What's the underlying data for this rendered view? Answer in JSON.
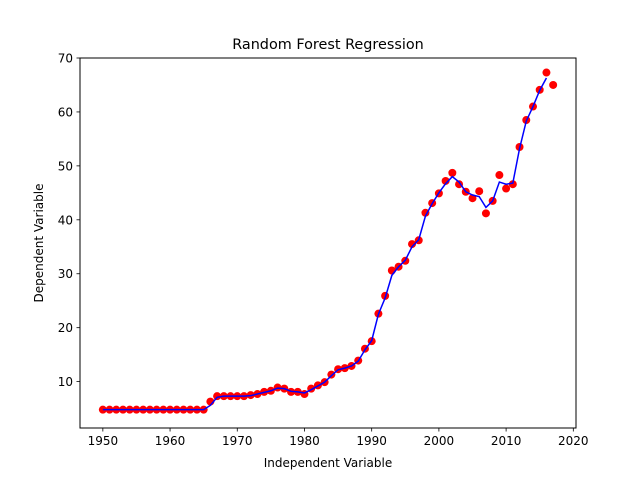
{
  "chart_data": {
    "type": "scatter",
    "title": "Random Forest Regression",
    "xlabel": "Independent Variable",
    "ylabel": "Dependent Variable",
    "xlim": [
      1946.6,
      2020.4
    ],
    "ylim": [
      1.4,
      70.0
    ],
    "xticks": [
      1950,
      1960,
      1970,
      1980,
      1990,
      2000,
      2010,
      2020
    ],
    "yticks": [
      10,
      20,
      30,
      40,
      50,
      60,
      70
    ],
    "grid": false,
    "legend": "none",
    "series": [
      {
        "kind": "scatter",
        "color": "#ff0000",
        "x": [
          1950,
          1951,
          1952,
          1953,
          1954,
          1955,
          1956,
          1957,
          1958,
          1959,
          1960,
          1961,
          1962,
          1963,
          1964,
          1965,
          1966,
          1967,
          1968,
          1969,
          1970,
          1971,
          1972,
          1973,
          1974,
          1975,
          1976,
          1977,
          1978,
          1979,
          1980,
          1981,
          1982,
          1983,
          1984,
          1985,
          1986,
          1987,
          1988,
          1989,
          1990,
          1991,
          1992,
          1993,
          1994,
          1995,
          1996,
          1997,
          1998,
          1999,
          2000,
          2001,
          2002,
          2003,
          2004,
          2005,
          2006,
          2007,
          2008,
          2009,
          2010,
          2011,
          2012,
          2013,
          2014,
          2015,
          2016,
          2017
        ],
        "y": [
          4.8,
          4.8,
          4.8,
          4.8,
          4.8,
          4.8,
          4.8,
          4.8,
          4.8,
          4.8,
          4.8,
          4.8,
          4.8,
          4.8,
          4.8,
          4.8,
          6.3,
          7.3,
          7.3,
          7.3,
          7.3,
          7.3,
          7.5,
          7.7,
          8.1,
          8.3,
          8.9,
          8.7,
          8.1,
          8.1,
          7.7,
          8.7,
          9.3,
          9.9,
          11.3,
          12.3,
          12.5,
          12.9,
          13.9,
          16.1,
          17.5,
          22.6,
          25.9,
          30.6,
          31.3,
          32.4,
          35.5,
          36.2,
          41.3,
          43.1,
          44.9,
          47.2,
          48.7,
          46.6,
          45.2,
          44.0,
          45.3,
          41.2,
          43.5,
          48.3,
          45.8,
          46.6,
          53.5,
          58.5,
          61.0,
          64.1,
          67.3,
          65.0
        ]
      },
      {
        "kind": "line",
        "color": "#0000ff",
        "x": [
          1950,
          1951,
          1952,
          1953,
          1954,
          1955,
          1956,
          1957,
          1958,
          1959,
          1960,
          1961,
          1962,
          1963,
          1964,
          1965,
          1966,
          1967,
          1968,
          1969,
          1970,
          1971,
          1972,
          1973,
          1974,
          1975,
          1976,
          1977,
          1978,
          1979,
          1980,
          1981,
          1982,
          1983,
          1984,
          1985,
          1986,
          1987,
          1988,
          1989,
          1990,
          1991,
          1992,
          1993,
          1994,
          1995,
          1996,
          1997,
          1998,
          1999,
          2000,
          2001,
          2002,
          2003,
          2004,
          2005,
          2006,
          2007,
          2008,
          2009,
          2010,
          2011,
          2012,
          2013,
          2014,
          2015,
          2016
        ],
        "y": [
          4.8,
          4.8,
          4.8,
          4.8,
          4.8,
          4.8,
          4.8,
          4.8,
          4.8,
          4.8,
          4.8,
          4.8,
          4.8,
          4.8,
          4.8,
          4.8,
          5.6,
          7.1,
          7.3,
          7.3,
          7.3,
          7.3,
          7.4,
          7.7,
          8.0,
          8.3,
          8.8,
          8.7,
          8.2,
          8.1,
          7.9,
          8.5,
          9.2,
          9.9,
          11.1,
          12.2,
          12.5,
          12.9,
          13.8,
          15.9,
          17.6,
          22.5,
          25.5,
          29.7,
          31.3,
          32.5,
          35.0,
          36.3,
          40.7,
          43.0,
          45.0,
          46.7,
          48.0,
          47.0,
          45.2,
          44.6,
          44.3,
          42.3,
          43.5,
          47.0,
          46.6,
          46.8,
          53.2,
          58.3,
          61.0,
          64.0,
          66.3
        ]
      }
    ]
  }
}
